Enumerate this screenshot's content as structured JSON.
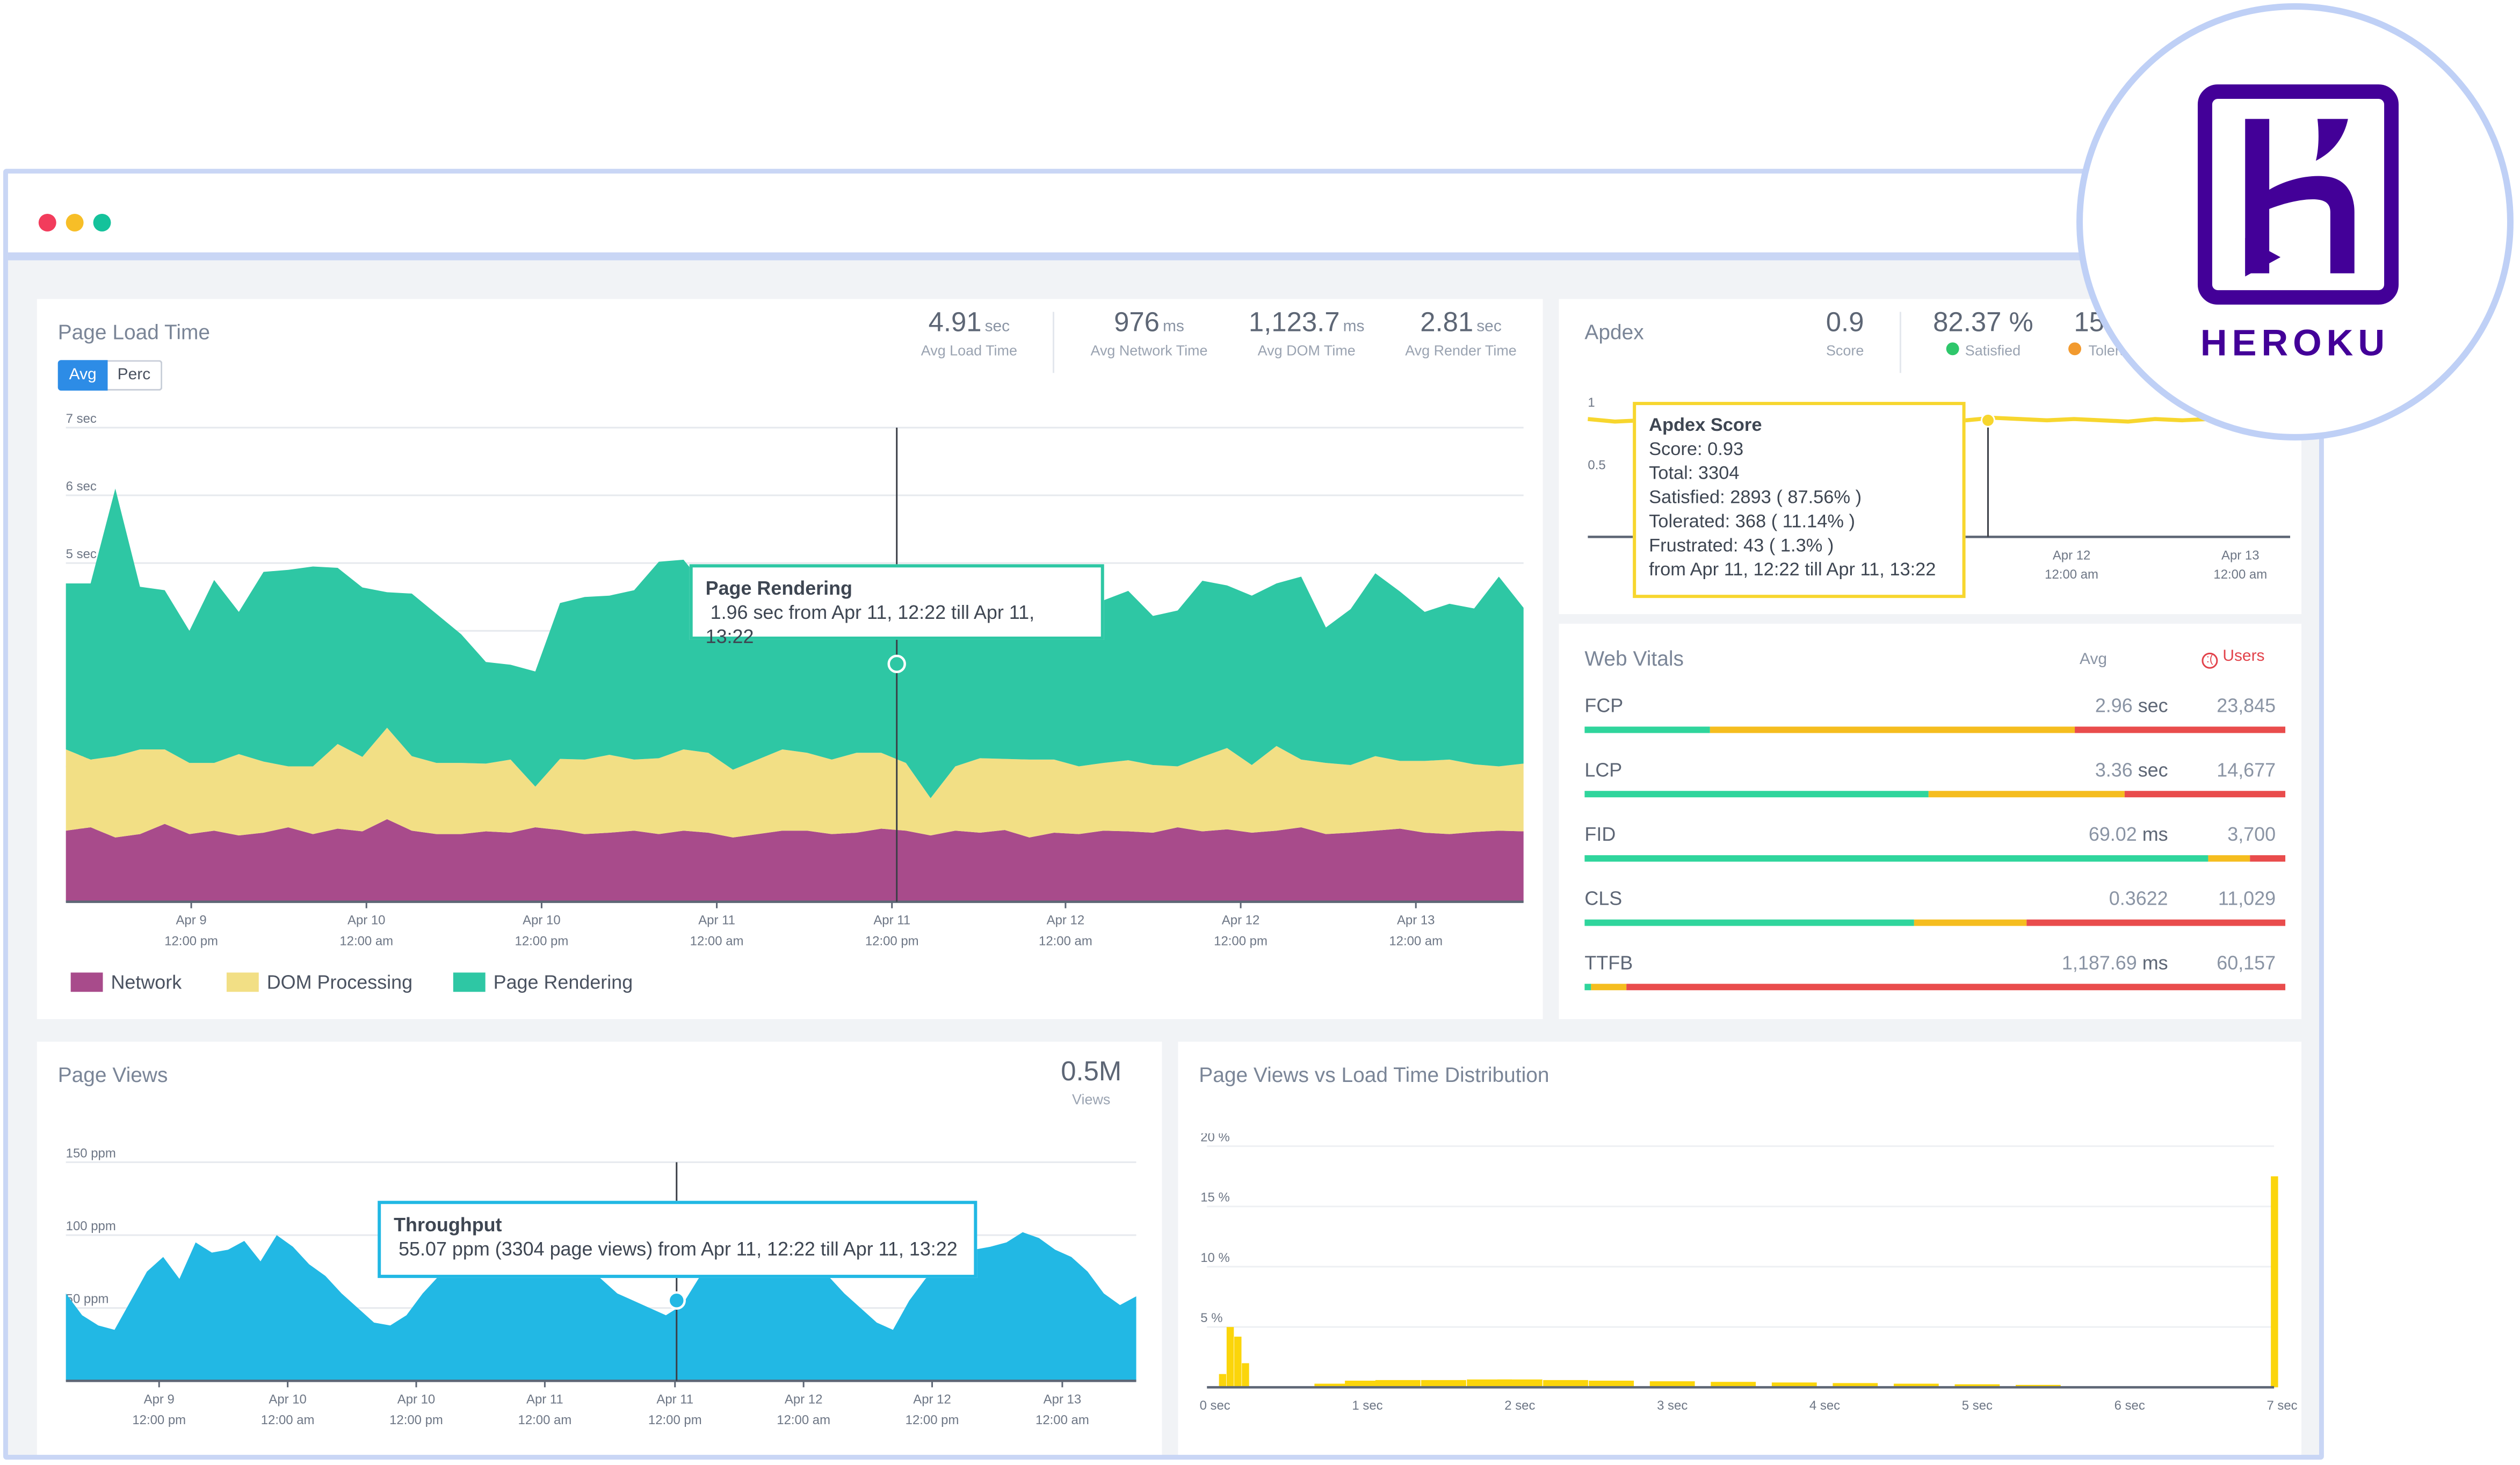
{
  "window": {
    "dots": [
      "#f23c5c",
      "#f7be27",
      "#14c29b"
    ]
  },
  "brand": {
    "name": "HEROKU",
    "color": "#430098",
    "icon": "heroku-logo-icon"
  },
  "page_load": {
    "title": "Page Load Time",
    "toggle": [
      "Avg",
      "Perc"
    ],
    "stats": [
      {
        "value": "4.91",
        "unit": "sec",
        "label": "Avg Load Time"
      },
      {
        "value": "976",
        "unit": "ms",
        "label": "Avg Network Time"
      },
      {
        "value": "1,123.7",
        "unit": "ms",
        "label": "Avg DOM Time"
      },
      {
        "value": "2.81",
        "unit": "sec",
        "label": "Avg Render Time"
      }
    ],
    "tooltip": {
      "title": "Page Rendering",
      "text": "1.96 sec from Apr 11, 12:22 till Apr 11, 13:22"
    },
    "legend": [
      {
        "name": "Network",
        "color": "#a84b8b"
      },
      {
        "name": "DOM Processing",
        "color": "#f2df85"
      },
      {
        "name": "Page Rendering",
        "color": "#2ec7a4"
      }
    ]
  },
  "apdex": {
    "title": "Apdex",
    "stats": [
      {
        "value": "0.9",
        "label": "Score",
        "dot": ""
      },
      {
        "value": "82.37 %",
        "label": "Satisfied",
        "dot": "#2ec76b"
      },
      {
        "value": "15.8",
        "label": "Tolerat",
        "dot": "#f29a2e"
      }
    ],
    "tooltip": {
      "title": "Apdex Score",
      "lines": [
        "Score: 0.93",
        "Total: 3304",
        "Satisfied: 2893 ( 87.56% )",
        "Tolerated: 368 ( 11.14% )",
        "Frustrated: 43 ( 1.3% )",
        "from Apr 11, 12:22 till Apr 11, 13:22"
      ]
    }
  },
  "web_vitals": {
    "title": "Web Vitals",
    "avg_header": "Avg",
    "users_header": "Users",
    "items": [
      {
        "name": "FCP",
        "avg_value": "2.96",
        "avg_unit": "sec",
        "users": "23,845",
        "segments": [
          0.18,
          0.52,
          0.3
        ]
      },
      {
        "name": "LCP",
        "avg_value": "3.36",
        "avg_unit": "sec",
        "users": "14,677",
        "segments": [
          0.49,
          0.28,
          0.23
        ]
      },
      {
        "name": "FID",
        "avg_value": "69.02",
        "avg_unit": "ms",
        "users": "3,700",
        "segments": [
          0.89,
          0.06,
          0.05
        ]
      },
      {
        "name": "CLS",
        "avg_value": "0.3622",
        "avg_unit": "",
        "users": "11,029",
        "segments": [
          0.47,
          0.16,
          0.37
        ]
      },
      {
        "name": "TTFB",
        "avg_value": "1,187.69",
        "avg_unit": "ms",
        "users": "60,157",
        "segments": [
          0.01,
          0.05,
          0.94
        ]
      }
    ]
  },
  "page_views": {
    "title": "Page Views",
    "total": {
      "value": "0.5M",
      "label": "Views"
    },
    "tooltip": {
      "title": "Throughput",
      "text": "55.07 ppm (3304 page views) from Apr 11, 12:22 till Apr 11, 13:22"
    }
  },
  "distribution": {
    "title": "Page Views vs Load Time Distribution"
  },
  "chart_data": [
    {
      "type": "area",
      "stacked": true,
      "y_unit": "sec",
      "ylim": [
        0,
        7
      ],
      "yticks": [
        "1 sec",
        "2 sec",
        "3 sec",
        "4 sec",
        "5 sec",
        "6 sec",
        "7 sec"
      ],
      "x_ticks": [
        [
          "Apr 9",
          "12:00 pm"
        ],
        [
          "Apr 10",
          "12:00 am"
        ],
        [
          "Apr 10",
          "12:00 pm"
        ],
        [
          "Apr 11",
          "12:00 am"
        ],
        [
          "Apr 11",
          "12:00 pm"
        ],
        [
          "Apr 12",
          "12:00 am"
        ],
        [
          "Apr 12",
          "12:00 pm"
        ],
        [
          "Apr 13",
          "12:00 am"
        ]
      ],
      "grid": true,
      "colors": [
        "#a84b8b",
        "#f2df85",
        "#2ec7a4"
      ],
      "series": [
        {
          "name": "Network",
          "values": [
            1.05,
            1.1,
            0.95,
            1.0,
            1.15,
            1.0,
            1.05,
            0.98,
            1.02,
            1.1,
            1.0,
            1.08,
            1.04,
            1.22,
            1.05,
            1.0,
            1.0,
            1.04,
            1.02,
            1.1,
            1.06,
            1.0,
            1.02,
            1.05,
            1.0,
            1.05,
            1.02,
            0.95,
            1.0,
            1.05,
            1.05,
            1.0,
            1.02,
            1.08,
            1.05,
            0.98,
            1.05,
            1.02,
            1.06,
            0.95,
            1.02,
            1.0,
            1.05,
            1.04,
            1.02,
            1.1,
            1.04,
            1.07,
            1.02,
            1.05,
            1.1,
            1.0,
            1.02,
            1.05,
            1.08,
            1.02,
            1.0,
            1.03,
            1.05,
            1.04
          ]
        },
        {
          "name": "DOM Processing",
          "values": [
            1.2,
            1.0,
            1.2,
            1.25,
            1.1,
            1.05,
            1.0,
            1.2,
            1.05,
            0.9,
            1.0,
            1.25,
            1.1,
            1.35,
            1.1,
            1.05,
            1.05,
            1.0,
            1.08,
            0.6,
            1.05,
            1.1,
            1.15,
            1.05,
            1.12,
            1.2,
            1.18,
            1.0,
            1.1,
            1.2,
            1.15,
            1.1,
            1.18,
            1.12,
            1.0,
            0.55,
            0.95,
            1.1,
            1.05,
            1.15,
            1.08,
            1.0,
            1.0,
            1.05,
            1.0,
            0.9,
            1.1,
            1.2,
            1.0,
            1.25,
            1.0,
            1.05,
            1.0,
            1.1,
            1.0,
            1.06,
            1.1,
            1.0,
            0.95,
            1.0
          ]
        },
        {
          "name": "Page Rendering",
          "values": [
            2.45,
            2.6,
            3.95,
            2.4,
            2.35,
            1.95,
            2.7,
            2.1,
            2.8,
            2.9,
            2.95,
            2.6,
            2.5,
            2.0,
            2.4,
            2.2,
            1.9,
            1.5,
            1.4,
            1.7,
            2.3,
            2.4,
            2.35,
            2.5,
            2.9,
            2.8,
            2.4,
            2.1,
            2.3,
            2.2,
            2.0,
            2.3,
            2.1,
            2.2,
            2.0,
            2.4,
            2.4,
            2.3,
            2.0,
            2.7,
            2.0,
            2.6,
            2.4,
            2.5,
            2.2,
            2.3,
            2.6,
            2.4,
            2.5,
            2.4,
            2.7,
            2.0,
            2.3,
            2.7,
            2.5,
            2.2,
            2.3,
            2.3,
            2.8,
            2.3
          ]
        }
      ]
    },
    {
      "type": "line",
      "ylim": [
        0,
        1
      ],
      "yticks": [
        "0.5",
        "1"
      ],
      "x_ticks": [
        [
          "Apr 12",
          "12:00 am"
        ],
        [
          "Apr 13",
          "12:00 am"
        ]
      ],
      "series": [
        {
          "name": "Apdex Score",
          "values": [
            0.94,
            0.92,
            0.93,
            0.95,
            0.94,
            0.93,
            0.92,
            0.93,
            0.94,
            0.93,
            0.92,
            0.94,
            0.93,
            0.94,
            0.93,
            0.95,
            0.94,
            0.93,
            0.94,
            0.93,
            0.92,
            0.94,
            0.93,
            0.94,
            0.93,
            0.94,
            0.93
          ]
        }
      ],
      "color": "#f7d62e"
    },
    {
      "type": "area",
      "ylim": [
        0,
        150
      ],
      "yticks": [
        "50 ppm",
        "100 ppm",
        "150 ppm"
      ],
      "x_ticks": [
        [
          "Apr 9",
          "12:00 pm"
        ],
        [
          "Apr 10",
          "12:00 am"
        ],
        [
          "Apr 10",
          "12:00 pm"
        ],
        [
          "Apr 11",
          "12:00 am"
        ],
        [
          "Apr 11",
          "12:00 pm"
        ],
        [
          "Apr 12",
          "12:00 am"
        ],
        [
          "Apr 12",
          "12:00 pm"
        ],
        [
          "Apr 13",
          "12:00 am"
        ]
      ],
      "grid": true,
      "color": "#22b8e4",
      "series": [
        {
          "name": "Throughput",
          "values": [
            60,
            45,
            38,
            35,
            55,
            75,
            85,
            70,
            95,
            88,
            90,
            96,
            82,
            100,
            92,
            80,
            72,
            60,
            50,
            40,
            38,
            45,
            60,
            72,
            80,
            95,
            90,
            100,
            98,
            105,
            90,
            88,
            80,
            70,
            60,
            55,
            50,
            45,
            52,
            70,
            85,
            90,
            95,
            100,
            92,
            88,
            80,
            72,
            60,
            50,
            40,
            35,
            55,
            70,
            80,
            85,
            90,
            92,
            95,
            102,
            98,
            90,
            85,
            75,
            60,
            52,
            58
          ]
        }
      ]
    },
    {
      "type": "bar",
      "y_unit": "%",
      "ylim": [
        0,
        20
      ],
      "yticks": [
        "5 %",
        "10 %",
        "15 %",
        "20 %"
      ],
      "x_ticks": [
        "0 sec",
        "1 sec",
        "2 sec",
        "3 sec",
        "4 sec",
        "5 sec",
        "6 sec",
        "7 sec"
      ],
      "xlim": [
        0,
        7
      ],
      "color": "#fbd50b",
      "bins": [
        [
          0.05,
          1.1
        ],
        [
          0.1,
          5.0
        ],
        [
          0.15,
          4.2
        ],
        [
          0.2,
          2.0
        ],
        [
          0.8,
          0.3
        ],
        [
          1.0,
          0.55
        ],
        [
          1.2,
          0.6
        ],
        [
          1.5,
          0.6
        ],
        [
          1.8,
          0.65
        ],
        [
          2.0,
          0.65
        ],
        [
          2.3,
          0.6
        ],
        [
          2.6,
          0.55
        ],
        [
          3.0,
          0.5
        ],
        [
          3.4,
          0.45
        ],
        [
          3.8,
          0.4
        ],
        [
          4.2,
          0.35
        ],
        [
          4.6,
          0.3
        ],
        [
          5.0,
          0.25
        ],
        [
          5.4,
          0.2
        ],
        [
          6.95,
          17.5
        ]
      ]
    }
  ]
}
